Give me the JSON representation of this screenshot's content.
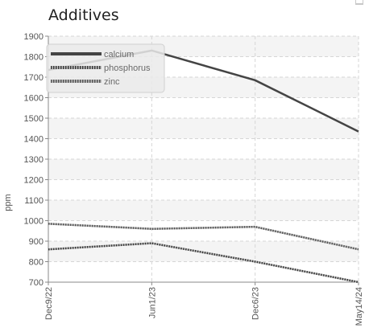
{
  "chart_data": {
    "type": "line",
    "title": "Additives",
    "xlabel": "",
    "ylabel": "ppm",
    "categories": [
      "Dec9/22",
      "Jun1/23",
      "Dec6/23",
      "May14/24"
    ],
    "ylim": [
      700,
      1900
    ],
    "yticks": [
      700,
      800,
      900,
      1000,
      1100,
      1200,
      1300,
      1400,
      1500,
      1600,
      1700,
      1800,
      1900
    ],
    "grid": true,
    "legend_position": "top-left",
    "series": [
      {
        "name": "calcium",
        "values": [
          1735,
          1830,
          1685,
          1435
        ],
        "color": "#444444",
        "style": "solid"
      },
      {
        "name": "phosphorus",
        "values": [
          860,
          890,
          800,
          700
        ],
        "color": "#3a3a3a",
        "style": "dotted"
      },
      {
        "name": "zinc",
        "values": [
          985,
          960,
          970,
          860
        ],
        "color": "#555555",
        "style": "dotted"
      }
    ]
  }
}
